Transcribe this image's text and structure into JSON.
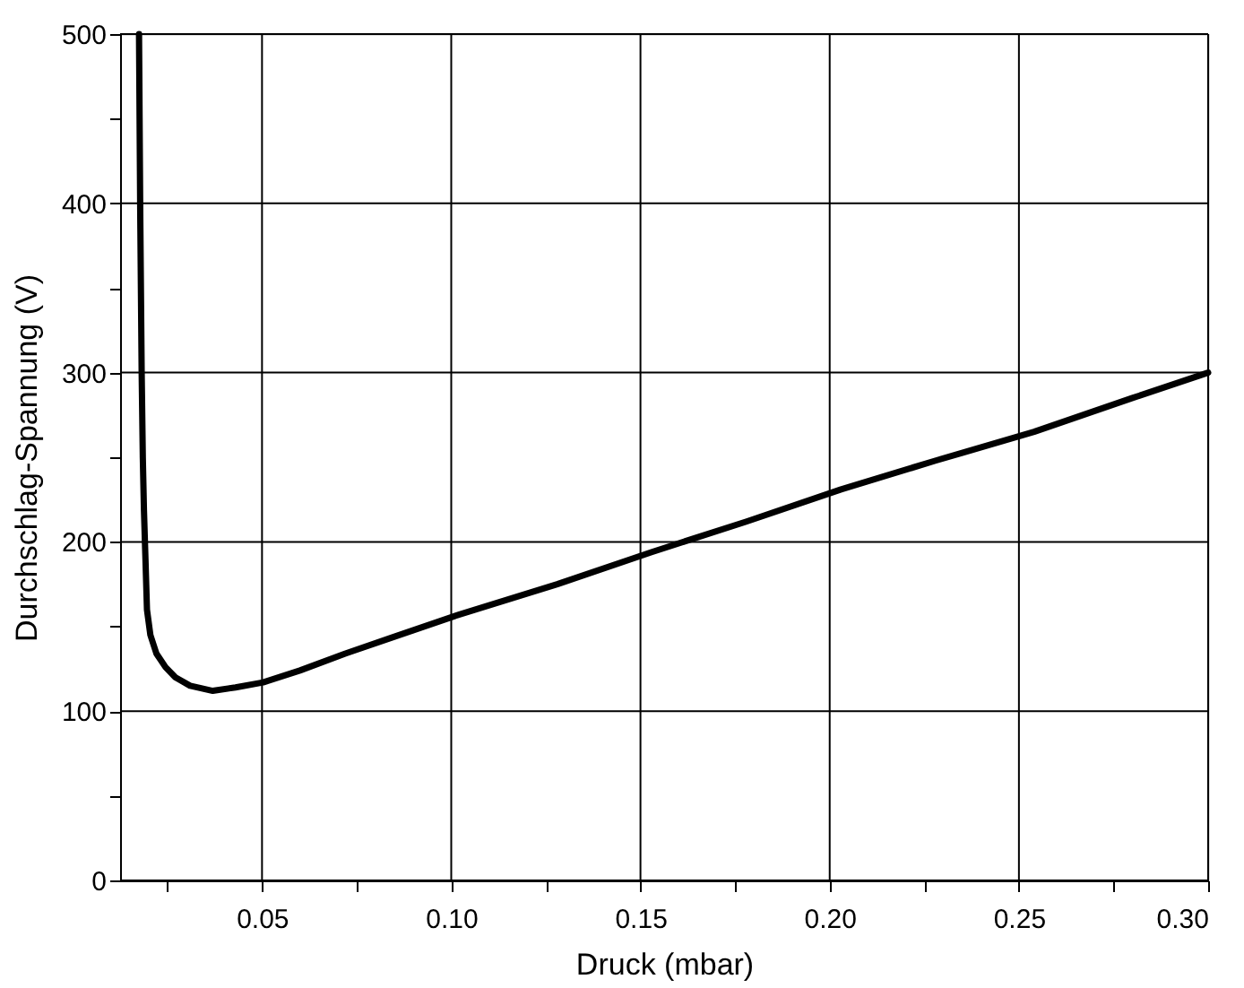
{
  "chart_data": {
    "type": "line",
    "xlabel": "Druck (mbar)",
    "ylabel": "Durchschlag-Spannung (V)",
    "x": [
      0.0175,
      0.0178,
      0.0182,
      0.0185,
      0.0188,
      0.0192,
      0.0196,
      0.0205,
      0.0221,
      0.0245,
      0.0271,
      0.031,
      0.037,
      0.043,
      0.0503,
      0.06,
      0.072,
      0.085,
      0.102,
      0.128,
      0.153,
      0.178,
      0.203,
      0.228,
      0.254,
      0.28,
      0.3
    ],
    "series": [
      {
        "color": "#000000",
        "values": [
          500,
          400,
          300,
          250,
          219,
          190,
          160,
          145,
          134,
          126,
          120,
          115,
          112,
          114,
          117,
          124,
          134,
          144,
          157,
          175,
          194,
          212,
          231,
          248,
          265,
          285,
          300
        ]
      }
    ],
    "xlim": [
      0.0125,
      0.3
    ],
    "ylim": [
      0,
      500
    ],
    "xticks": [
      {
        "value": 0.025,
        "label": null
      },
      {
        "value": 0.05,
        "label": "0.05"
      },
      {
        "value": 0.075,
        "label": null
      },
      {
        "value": 0.1,
        "label": "0.10"
      },
      {
        "value": 0.125,
        "label": null
      },
      {
        "value": 0.15,
        "label": "0.15"
      },
      {
        "value": 0.175,
        "label": null
      },
      {
        "value": 0.2,
        "label": "0.20"
      },
      {
        "value": 0.225,
        "label": null
      },
      {
        "value": 0.25,
        "label": "0.25"
      },
      {
        "value": 0.275,
        "label": null
      },
      {
        "value": 0.3,
        "label": "0.30"
      }
    ],
    "yticks": [
      0,
      {
        "value": 50,
        "label": null
      },
      100,
      {
        "value": 150,
        "label": null
      },
      200,
      {
        "value": 250,
        "label": null
      },
      300,
      {
        "value": 350,
        "label": null
      },
      400,
      {
        "value": 450,
        "label": null
      },
      500
    ],
    "grid": true,
    "marker": "none",
    "line_style": "solid",
    "legend": false
  }
}
